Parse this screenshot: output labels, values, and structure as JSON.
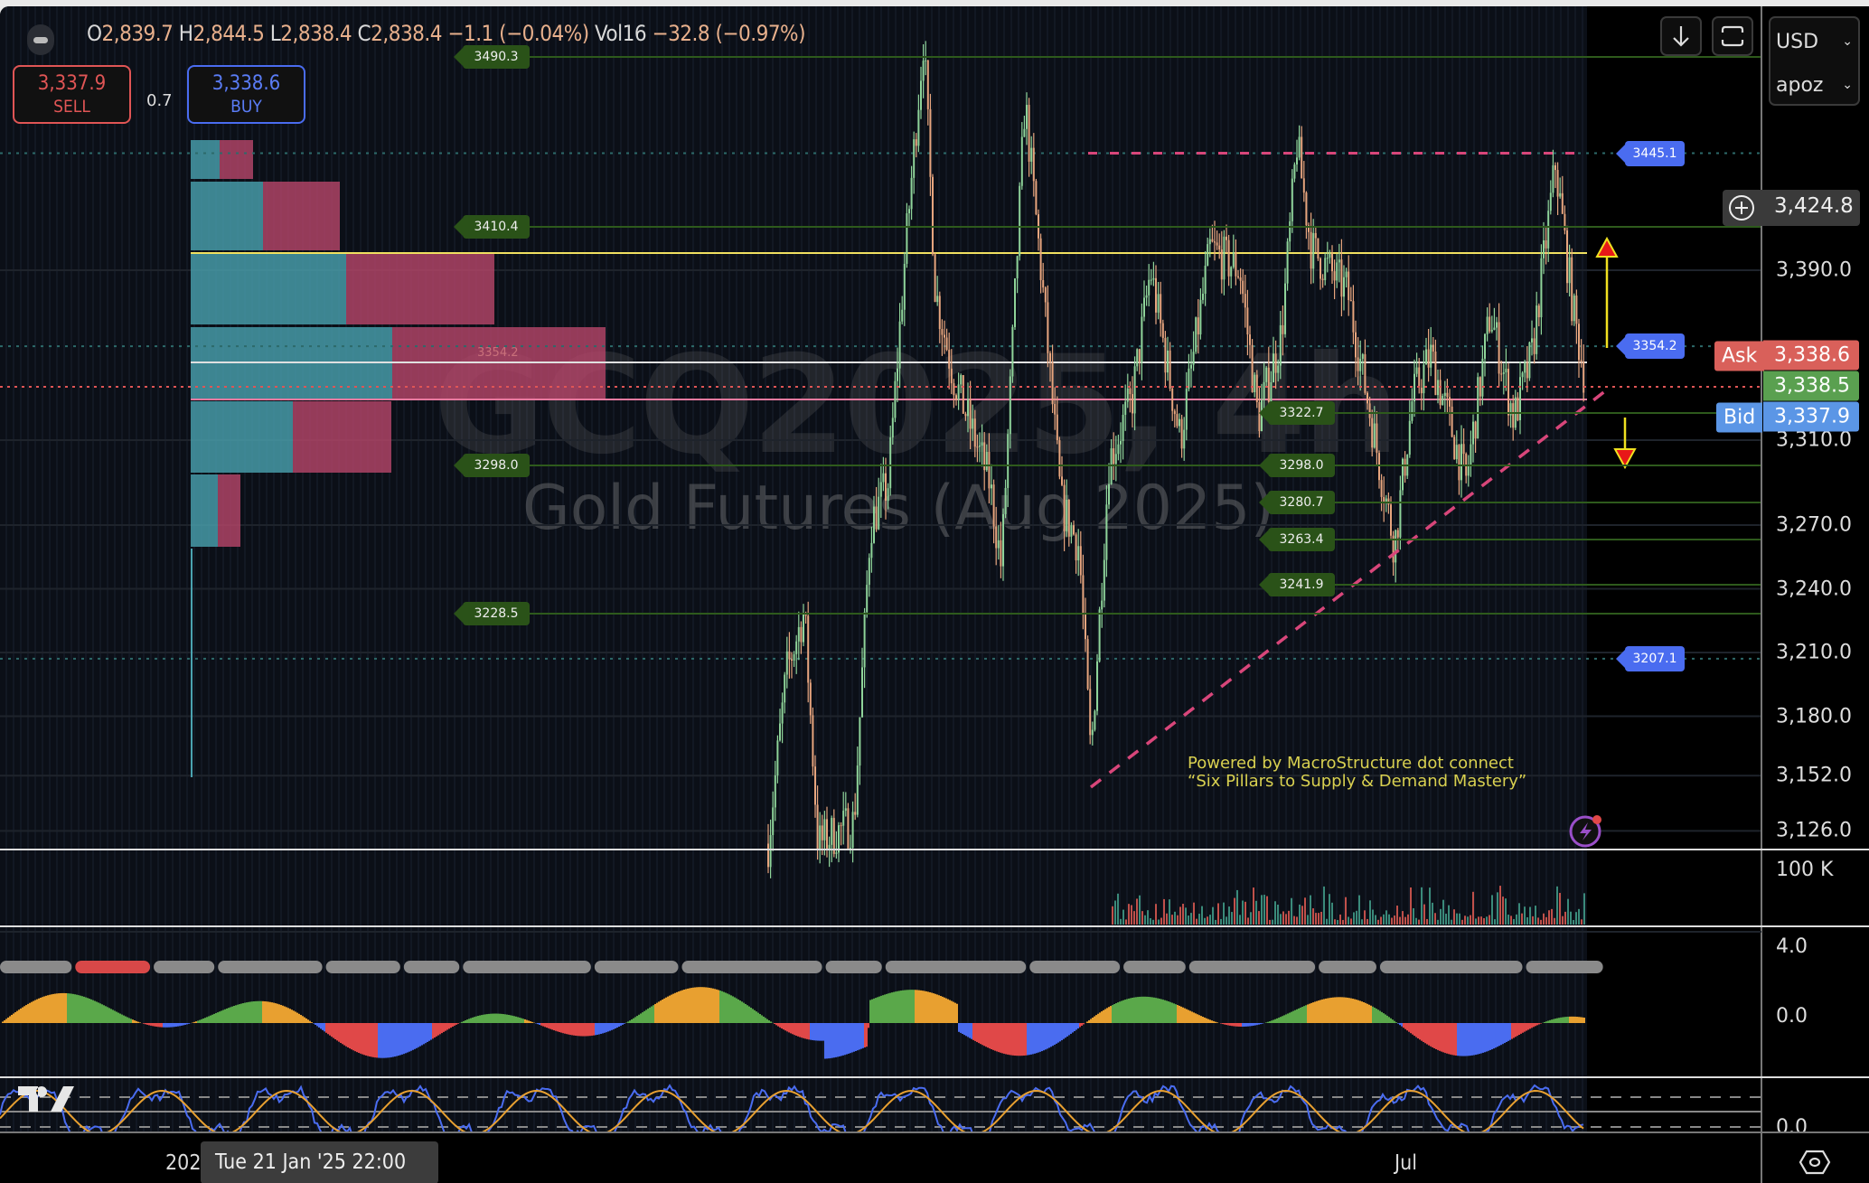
{
  "legend": {
    "open_label": "O",
    "open": "2,839.7",
    "high_label": "H",
    "high": "2,844.5",
    "low_label": "L",
    "low": "2,838.4",
    "close_label": "C",
    "close": "2,838.4",
    "change": "−1.1 (−0.04%)",
    "vol_label": "Vol",
    "vol": "16",
    "vol_change": "−32.8 (−0.97%)"
  },
  "trade": {
    "sell_price": "3,337.9",
    "sell_label": "SELL",
    "spread": "0.7",
    "buy_price": "3,338.6",
    "buy_label": "BUY"
  },
  "toolbar": {
    "download_icon": "arrow-down-icon",
    "fullscreen_icon": "fullscreen-icon",
    "currency": "USD",
    "unit": "apoz"
  },
  "symbol": {
    "ticker": "GCQ2025, 4h",
    "name": "Gold Futures (Aug 2025)"
  },
  "price_axis": {
    "ticks": [
      "3,390.0",
      "3,310.0",
      "3,270.0",
      "3,240.0",
      "3,210.0",
      "3,180.0",
      "3,152.0",
      "3,126.0"
    ],
    "tick_values": [
      3390,
      3310,
      3270,
      3240,
      3210,
      3180,
      3152,
      3126
    ],
    "crosshair_price": "3,424.8",
    "ask_label": "Ask",
    "ask": "3,338.6",
    "last": "3,338.5",
    "bid_label": "Bid",
    "bid": "3,337.9"
  },
  "levels_left": [
    "3490.3",
    "3410.4",
    "3298.0",
    "3228.5"
  ],
  "levels_right": [
    "3322.7",
    "3298.0",
    "3280.7",
    "3263.4",
    "3241.9"
  ],
  "levels_blue": [
    "3445.1",
    "3354.2",
    "3207.1"
  ],
  "profile_label": "3354.2",
  "watermark_note": {
    "line1": "Powered by MacroStructure dot connect",
    "line2": "“Six Pillars to Supply & Demand Mastery”"
  },
  "volume_axis": "100 K",
  "osc_axis": [
    "4.0",
    "0.0"
  ],
  "stoch_axis": "0.0",
  "time_axis": {
    "partial_year": "202",
    "tooltip": "Tue 21 Jan '25   22:00",
    "month": "Jul"
  },
  "colors": {
    "sell": "#e05555",
    "buy": "#4a6cf0",
    "ask": "#d9605a",
    "last": "#5aa050",
    "bid": "#5b96e6",
    "level_green": "#2a5218",
    "tag_blue": "#4a6cf0",
    "candle_up": "#8fd49a",
    "candle_down": "#e7a57e",
    "trendline": "#d8467a",
    "note": "#d8d050"
  }
}
